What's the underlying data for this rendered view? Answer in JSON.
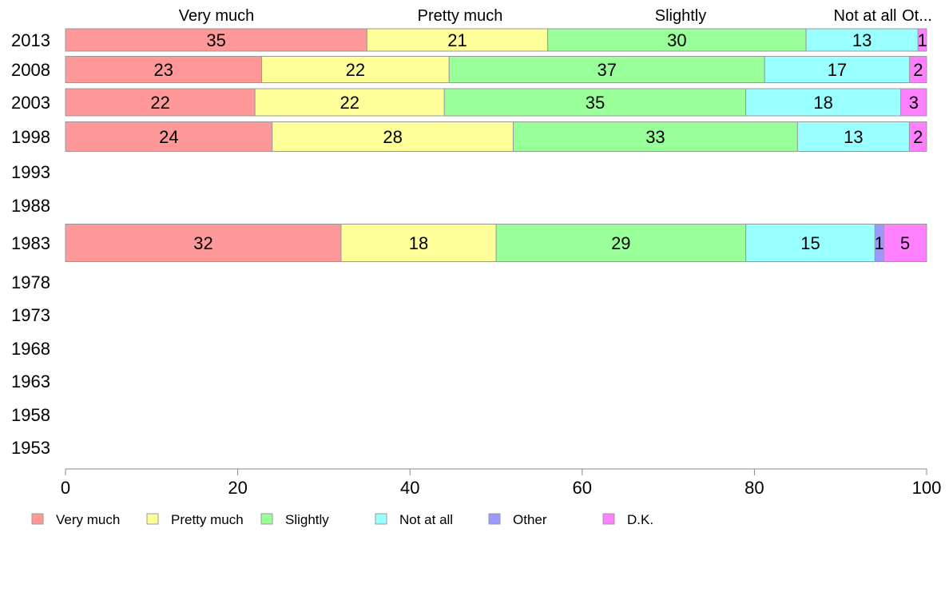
{
  "chart_data": {
    "type": "bar",
    "orientation": "horizontal",
    "stacked": true,
    "categories": [
      "2013",
      "2008",
      "2003",
      "1998",
      "1993",
      "1988",
      "1983",
      "1978",
      "1973",
      "1968",
      "1963",
      "1958",
      "1953"
    ],
    "series": [
      {
        "name": "Very much",
        "color": "#ff9999",
        "values": [
          35,
          23,
          22,
          24,
          null,
          null,
          32,
          null,
          null,
          null,
          null,
          null,
          null
        ]
      },
      {
        "name": "Pretty much",
        "color": "#ffff99",
        "values": [
          21,
          22,
          22,
          28,
          null,
          null,
          18,
          null,
          null,
          null,
          null,
          null,
          null
        ]
      },
      {
        "name": "Slightly",
        "color": "#99ff99",
        "values": [
          30,
          37,
          35,
          33,
          null,
          null,
          29,
          null,
          null,
          null,
          null,
          null,
          null
        ]
      },
      {
        "name": "Not at all",
        "color": "#99ffff",
        "values": [
          13,
          17,
          18,
          13,
          null,
          null,
          15,
          null,
          null,
          null,
          null,
          null,
          null
        ]
      },
      {
        "name": "Other",
        "color": "#9999ff",
        "values": [
          0,
          0,
          0,
          0,
          null,
          null,
          1,
          null,
          null,
          null,
          null,
          null,
          null
        ]
      },
      {
        "name": "D.K.",
        "color": "#ff80ff",
        "values": [
          1,
          2,
          3,
          2,
          null,
          null,
          5,
          null,
          null,
          null,
          null,
          null,
          null
        ]
      }
    ],
    "column_headers": [
      "Very much",
      "Pretty much",
      "Slightly",
      "Not at all",
      "Ot..."
    ],
    "x_ticks": [
      "0",
      "20",
      "40",
      "60",
      "80",
      "100"
    ],
    "xlim": [
      0,
      100
    ],
    "legend_position": "bottom"
  }
}
